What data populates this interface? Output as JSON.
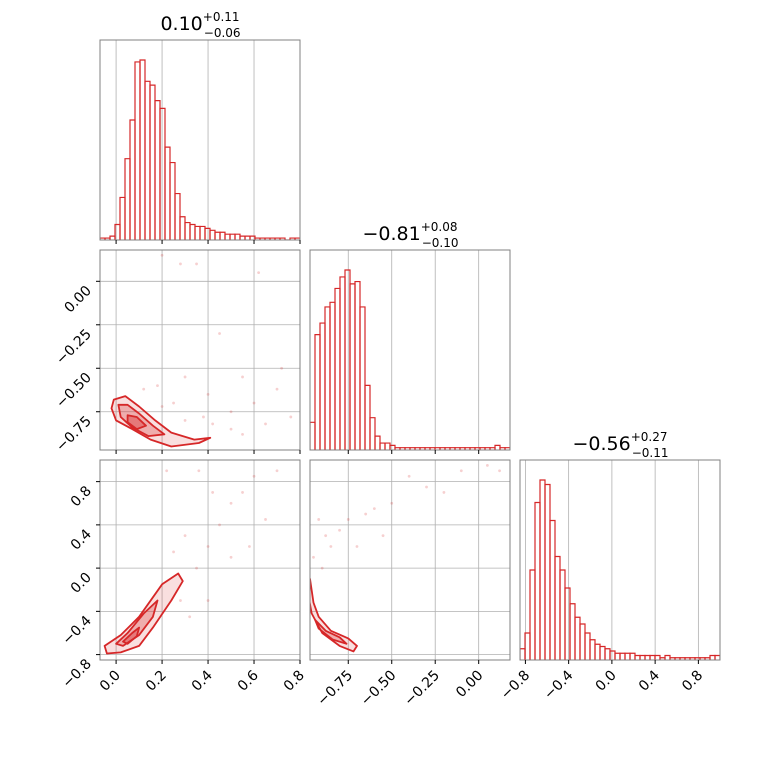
{
  "chart_data": {
    "type": "corner",
    "color": "#d62728",
    "grid": true,
    "parameters": [
      {
        "index": 0,
        "title": {
          "median": "0.10",
          "plus": "+0.11",
          "minus": "−0.06"
        },
        "range": [
          -0.07,
          0.8
        ],
        "ticks": [
          0.0,
          0.2,
          0.4,
          0.6,
          0.8
        ],
        "tick_labels": [
          "0.0",
          "0.2",
          "0.4",
          "0.6",
          "0.8"
        ]
      },
      {
        "index": 1,
        "title": {
          "median": "−0.81",
          "plus": "+0.08",
          "minus": "−0.10"
        },
        "range": [
          -0.97,
          0.18
        ],
        "ticks": [
          -0.75,
          -0.5,
          -0.25,
          0.0
        ],
        "tick_labels": [
          "−0.75",
          "−0.50",
          "−0.25",
          "0.00"
        ]
      },
      {
        "index": 2,
        "title": {
          "median": "−0.56",
          "plus": "+0.27",
          "minus": "−0.11"
        },
        "range": [
          -0.85,
          1.0
        ],
        "ticks": [
          -0.8,
          -0.4,
          0.0,
          0.4,
          0.8
        ],
        "tick_labels": [
          "−0.8",
          "−0.4",
          "0.0",
          "0.4",
          "0.8"
        ]
      }
    ],
    "histograms": [
      {
        "param": 0,
        "bin_edges": [
          -0.07,
          0.8
        ],
        "counts": [
          1,
          1,
          2,
          8,
          22,
          42,
          62,
          92,
          93,
          82,
          80,
          72,
          68,
          48,
          40,
          24,
          12,
          9,
          8,
          7,
          7,
          6,
          5,
          4,
          4,
          3,
          3,
          3,
          2,
          2,
          2,
          1,
          1,
          1,
          1,
          1,
          1,
          0,
          1,
          1
        ]
      },
      {
        "param": 1,
        "bin_edges": [
          -0.97,
          0.18
        ],
        "counts": [
          12,
          50,
          55,
          62,
          64,
          70,
          75,
          78,
          72,
          73,
          62,
          28,
          14,
          6,
          3,
          3,
          2,
          1,
          1,
          1,
          1,
          1,
          1,
          1,
          1,
          1,
          1,
          1,
          1,
          1,
          1,
          1,
          1,
          1,
          1,
          1,
          1,
          2,
          1,
          1
        ]
      },
      {
        "param": 2,
        "bin_edges": [
          -0.85,
          1.0
        ],
        "counts": [
          5,
          12,
          40,
          70,
          80,
          78,
          62,
          46,
          40,
          32,
          25,
          19,
          16,
          12,
          9,
          7,
          6,
          5,
          4,
          3,
          3,
          3,
          3,
          2,
          2,
          2,
          2,
          2,
          1,
          2,
          1,
          1,
          1,
          1,
          1,
          1,
          1,
          1,
          2,
          2
        ]
      }
    ],
    "panels_2d": [
      {
        "x_param": 0,
        "y_param": 1,
        "contour_levels": [
          [
            [
              -0.01,
              -0.68
            ],
            [
              0.04,
              -0.66
            ],
            [
              0.1,
              -0.72
            ],
            [
              0.17,
              -0.8
            ],
            [
              0.24,
              -0.87
            ],
            [
              0.34,
              -0.91
            ],
            [
              0.41,
              -0.9
            ],
            [
              0.36,
              -0.93
            ],
            [
              0.24,
              -0.95
            ],
            [
              0.15,
              -0.91
            ],
            [
              0.07,
              -0.85
            ],
            [
              0.0,
              -0.8
            ],
            [
              -0.02,
              -0.73
            ]
          ],
          [
            [
              0.01,
              -0.71
            ],
            [
              0.05,
              -0.71
            ],
            [
              0.1,
              -0.76
            ],
            [
              0.16,
              -0.83
            ],
            [
              0.21,
              -0.88
            ],
            [
              0.14,
              -0.89
            ],
            [
              0.07,
              -0.84
            ],
            [
              0.02,
              -0.78
            ]
          ],
          [
            [
              0.05,
              -0.77
            ],
            [
              0.09,
              -0.78
            ],
            [
              0.13,
              -0.83
            ],
            [
              0.09,
              -0.85
            ],
            [
              0.05,
              -0.81
            ]
          ]
        ],
        "points": [
          [
            0.3,
            -0.8
          ],
          [
            0.42,
            -0.82
          ],
          [
            0.5,
            -0.75
          ],
          [
            0.6,
            -0.7
          ],
          [
            0.7,
            -0.62
          ],
          [
            0.72,
            -0.5
          ],
          [
            0.55,
            -0.55
          ],
          [
            0.45,
            -0.3
          ],
          [
            0.2,
            0.15
          ],
          [
            0.28,
            0.1
          ],
          [
            0.35,
            0.1
          ],
          [
            0.62,
            0.05
          ],
          [
            0.18,
            -0.6
          ],
          [
            0.25,
            -0.7
          ],
          [
            0.4,
            -0.65
          ],
          [
            0.5,
            -0.85
          ],
          [
            0.65,
            -0.82
          ],
          [
            0.76,
            -0.78
          ],
          [
            0.3,
            -0.55
          ],
          [
            0.38,
            -0.78
          ],
          [
            0.2,
            -0.72
          ],
          [
            0.12,
            -0.62
          ],
          [
            0.55,
            -0.88
          ]
        ]
      },
      {
        "x_param": 0,
        "y_param": 2,
        "contour_levels": [
          [
            [
              -0.05,
              -0.72
            ],
            [
              0.02,
              -0.62
            ],
            [
              0.1,
              -0.45
            ],
            [
              0.2,
              -0.15
            ],
            [
              0.27,
              -0.05
            ],
            [
              0.29,
              -0.12
            ],
            [
              0.24,
              -0.3
            ],
            [
              0.16,
              -0.55
            ],
            [
              0.1,
              -0.72
            ],
            [
              0.02,
              -0.78
            ],
            [
              -0.04,
              -0.79
            ]
          ],
          [
            [
              0.0,
              -0.7
            ],
            [
              0.05,
              -0.6
            ],
            [
              0.12,
              -0.42
            ],
            [
              0.18,
              -0.3
            ],
            [
              0.16,
              -0.45
            ],
            [
              0.1,
              -0.62
            ],
            [
              0.03,
              -0.72
            ]
          ],
          [
            [
              0.03,
              -0.68
            ],
            [
              0.07,
              -0.6
            ],
            [
              0.1,
              -0.55
            ],
            [
              0.09,
              -0.63
            ],
            [
              0.05,
              -0.7
            ]
          ]
        ],
        "points": [
          [
            0.35,
            0.0
          ],
          [
            0.4,
            0.2
          ],
          [
            0.45,
            0.4
          ],
          [
            0.5,
            0.6
          ],
          [
            0.55,
            0.7
          ],
          [
            0.6,
            0.85
          ],
          [
            0.3,
            0.3
          ],
          [
            0.25,
            0.15
          ],
          [
            0.5,
            0.1
          ],
          [
            0.65,
            0.45
          ],
          [
            0.7,
            0.9
          ],
          [
            0.4,
            -0.3
          ],
          [
            0.32,
            -0.45
          ],
          [
            0.42,
            0.7
          ],
          [
            0.28,
            -0.3
          ],
          [
            0.58,
            0.2
          ],
          [
            0.22,
            0.9
          ],
          [
            0.36,
            0.9
          ]
        ]
      },
      {
        "x_param": 1,
        "y_param": 2,
        "contour_levels": [
          [
            [
              -0.97,
              -0.1
            ],
            [
              -0.95,
              -0.32
            ],
            [
              -0.92,
              -0.45
            ],
            [
              -0.85,
              -0.58
            ],
            [
              -0.75,
              -0.65
            ],
            [
              -0.7,
              -0.72
            ],
            [
              -0.72,
              -0.77
            ],
            [
              -0.8,
              -0.72
            ],
            [
              -0.9,
              -0.6
            ],
            [
              -0.96,
              -0.42
            ],
            [
              -0.98,
              -0.25
            ]
          ],
          [
            [
              -0.94,
              -0.48
            ],
            [
              -0.88,
              -0.58
            ],
            [
              -0.8,
              -0.64
            ],
            [
              -0.76,
              -0.7
            ],
            [
              -0.84,
              -0.66
            ],
            [
              -0.92,
              -0.56
            ]
          ]
        ],
        "points": [
          [
            -0.9,
            0.0
          ],
          [
            -0.85,
            0.2
          ],
          [
            -0.8,
            0.35
          ],
          [
            -0.75,
            0.45
          ],
          [
            -0.6,
            0.55
          ],
          [
            -0.5,
            0.6
          ],
          [
            -0.3,
            0.75
          ],
          [
            -0.1,
            0.9
          ],
          [
            0.05,
            0.95
          ],
          [
            0.12,
            0.9
          ],
          [
            -0.95,
            0.1
          ],
          [
            -0.88,
            0.3
          ],
          [
            -0.7,
            0.2
          ],
          [
            -0.4,
            0.85
          ],
          [
            -0.2,
            0.7
          ],
          [
            -0.65,
            0.5
          ],
          [
            -0.92,
            0.45
          ],
          [
            -0.55,
            0.3
          ]
        ]
      }
    ]
  }
}
